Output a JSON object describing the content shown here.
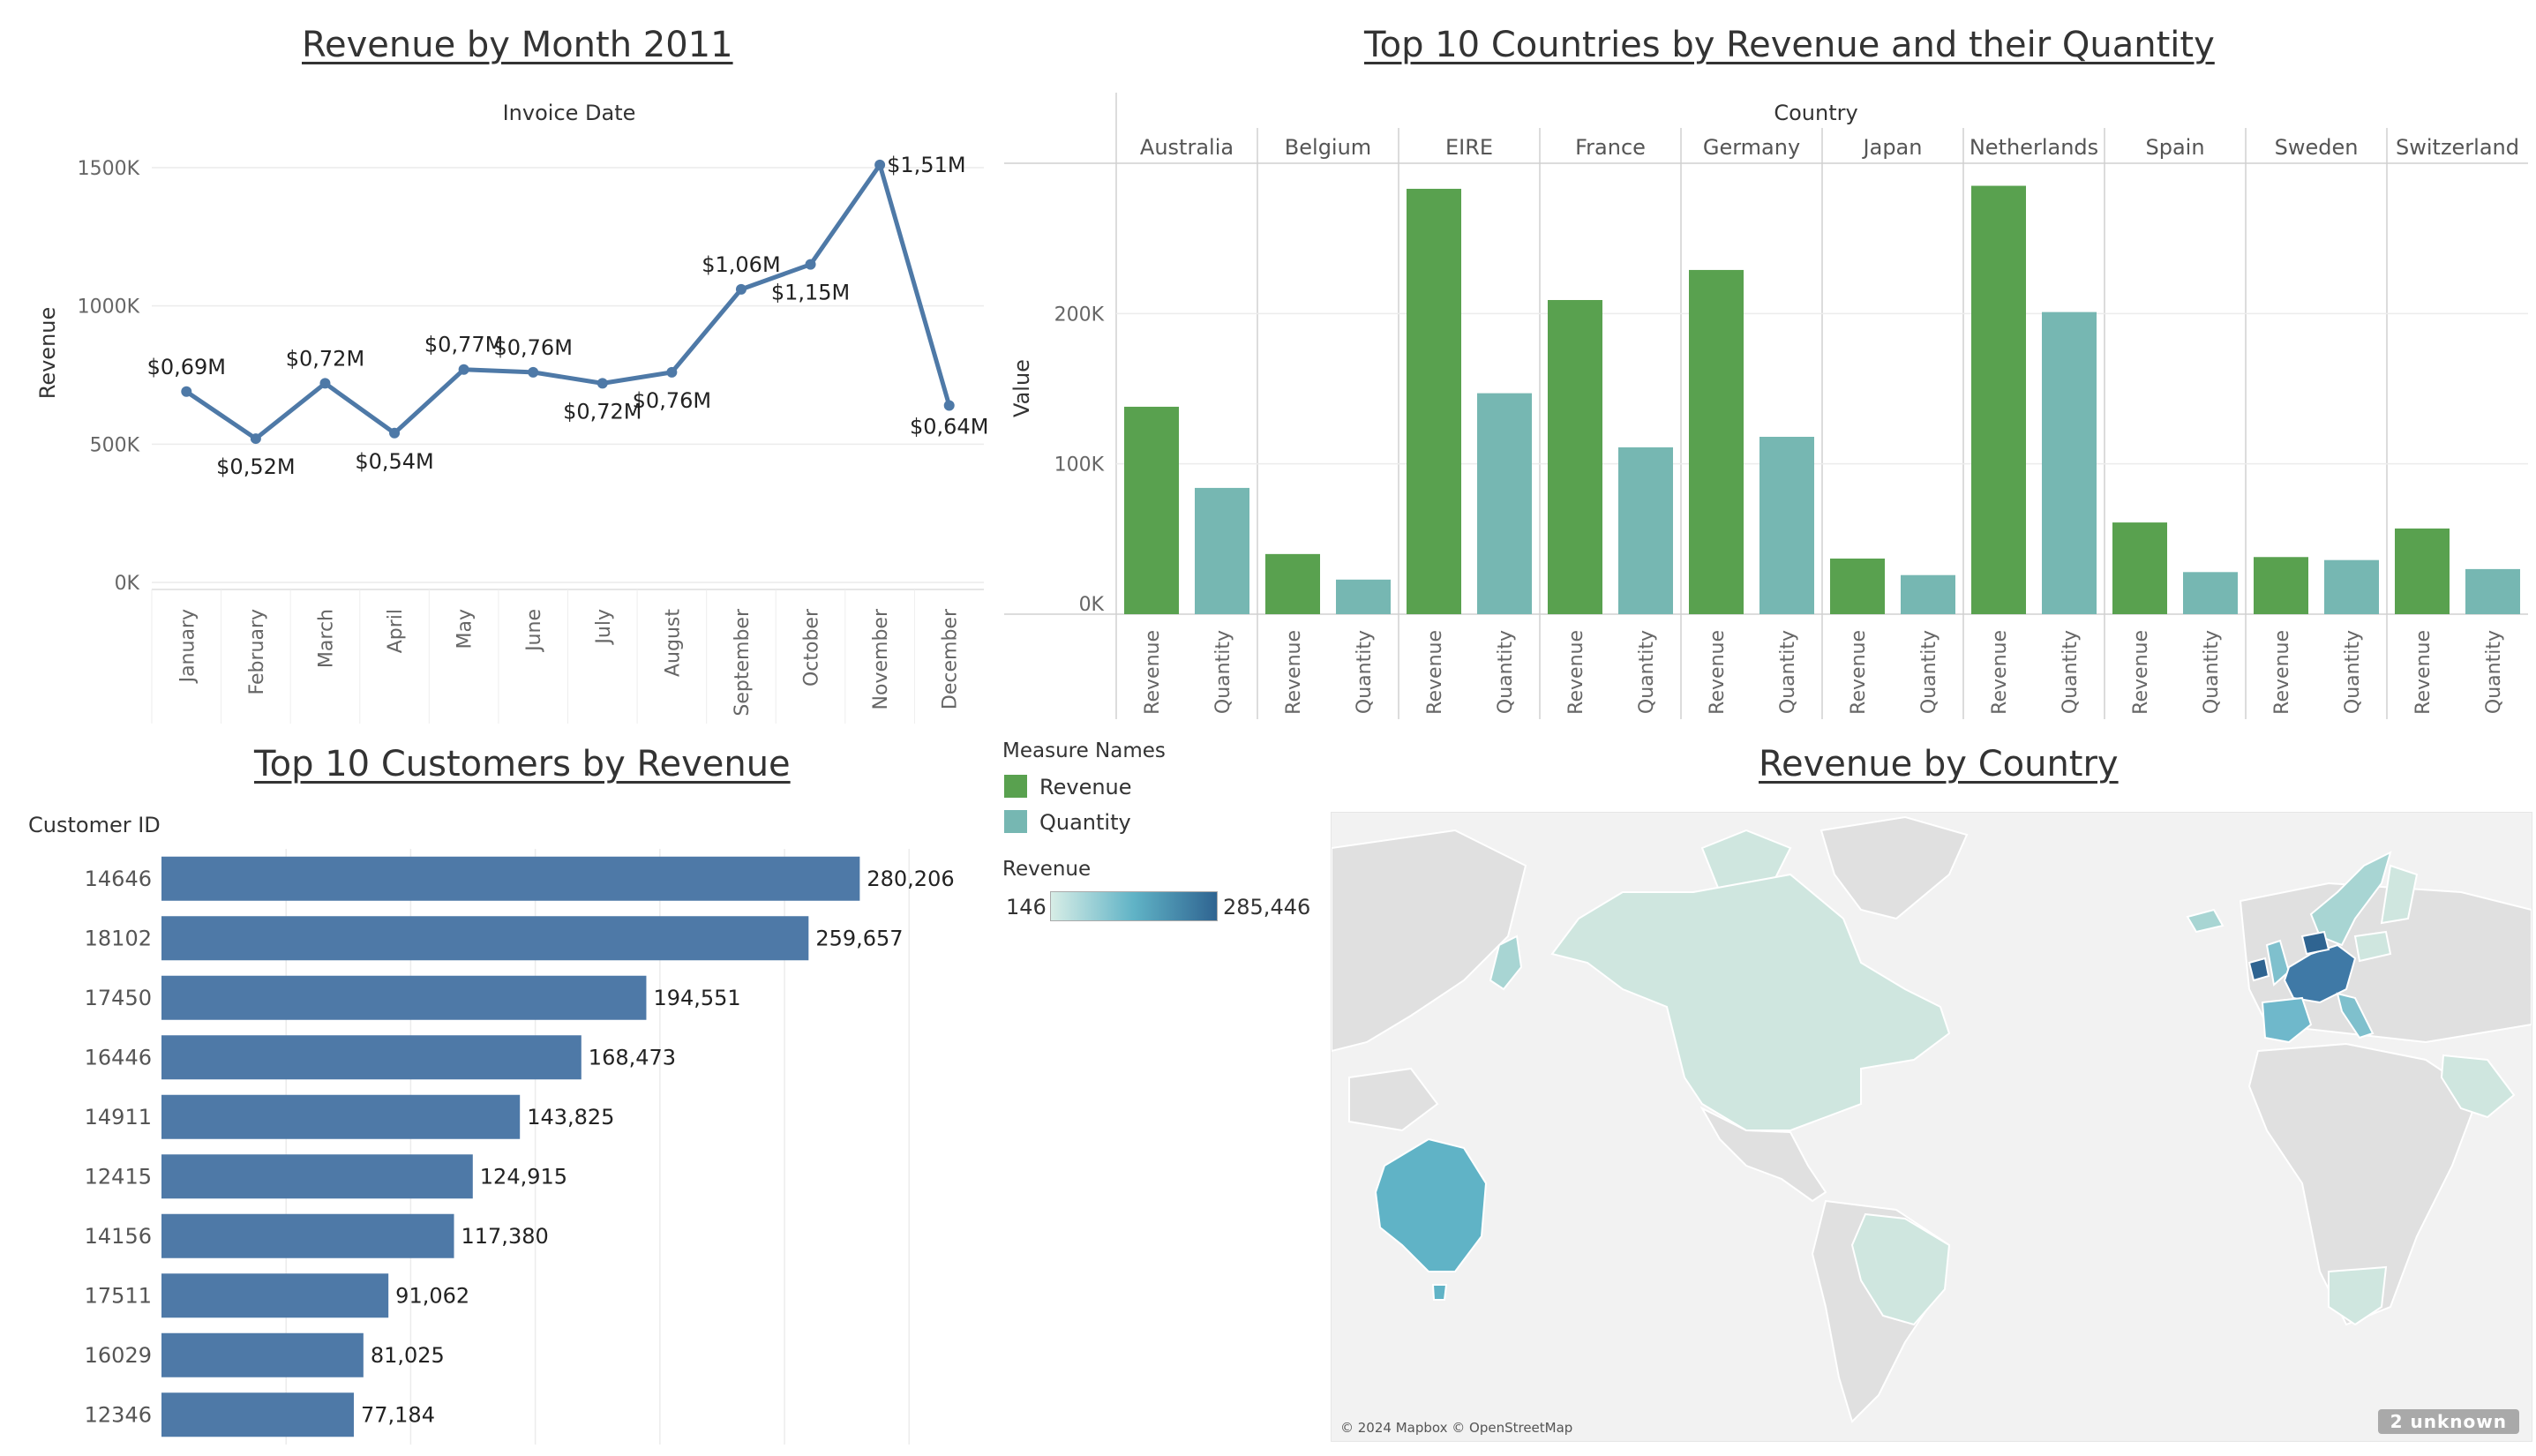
{
  "titles": {
    "line": "Revenue by Month 2011",
    "bars": "Top 10 Countries by Revenue and their Quantity",
    "customers": "Top 10 Customers by Revenue",
    "map": "Revenue by Country"
  },
  "legend": {
    "measure_title": "Measure Names",
    "measures": [
      {
        "label": "Revenue",
        "color": "#59a14f"
      },
      {
        "label": "Quantity",
        "color": "#76b7b2"
      }
    ],
    "revenue_title": "Revenue",
    "min_label": "146",
    "max_label": "285,446"
  },
  "map": {
    "attribution": "© 2024 Mapbox © OpenStreetMap",
    "unknown_label": "2 unknown"
  },
  "chart_data": [
    {
      "type": "line",
      "title": "Revenue by Month 2011",
      "xlabel": "Invoice Date",
      "ylabel": "Revenue",
      "ylim": [
        0,
        1500000
      ],
      "yticks": [
        0,
        500000,
        1000000,
        1500000
      ],
      "ytick_labels": [
        "0K",
        "500K",
        "1000K",
        "1500K"
      ],
      "categories": [
        "January",
        "February",
        "March",
        "April",
        "May",
        "June",
        "July",
        "August",
        "September",
        "October",
        "November",
        "December"
      ],
      "values": [
        690000,
        520000,
        720000,
        540000,
        770000,
        760000,
        720000,
        760000,
        1060000,
        1150000,
        1510000,
        640000
      ],
      "labels": [
        "$0,69M",
        "$0,52M",
        "$0,72M",
        "$0,54M",
        "$0,77M",
        "$0,76M",
        "$0,72M",
        "$0,76M",
        "$1,06M",
        "$1,15M",
        "$1,51M",
        "$0,64M"
      ],
      "color": "#4e79a7"
    },
    {
      "type": "bar",
      "title": "Top 10 Countries by Revenue and their Quantity",
      "xlabel": "Country",
      "ylabel": "Value",
      "ylim": [
        0,
        300000
      ],
      "yticks": [
        0,
        100000,
        200000
      ],
      "ytick_labels": [
        "0K",
        "100K",
        "200K"
      ],
      "categories": [
        "Australia",
        "Belgium",
        "EIRE",
        "France",
        "Germany",
        "Japan",
        "Netherlands",
        "Spain",
        "Sweden",
        "Switzerland"
      ],
      "series": [
        {
          "name": "Revenue",
          "color": "#59a14f",
          "values": [
            138000,
            40000,
            283000,
            209000,
            229000,
            37000,
            285000,
            61000,
            38000,
            57000
          ]
        },
        {
          "name": "Quantity",
          "color": "#76b7b2",
          "values": [
            84000,
            23000,
            147000,
            111000,
            118000,
            26000,
            201000,
            28000,
            36000,
            30000
          ]
        }
      ]
    },
    {
      "type": "bar",
      "orientation": "horizontal",
      "title": "Top 10 Customers by Revenue",
      "ylabel": "Customer ID",
      "xlim": [
        0,
        330000
      ],
      "categories": [
        "14646",
        "18102",
        "17450",
        "16446",
        "14911",
        "12415",
        "14156",
        "17511",
        "16029",
        "12346"
      ],
      "values": [
        280206,
        259657,
        194551,
        168473,
        143825,
        124915,
        117380,
        91062,
        81025,
        77184
      ],
      "labels": [
        "280,206",
        "259,657",
        "194,551",
        "168,473",
        "143,825",
        "124,915",
        "117,380",
        "91,062",
        "81,025",
        "77,184"
      ],
      "color": "#4e79a7"
    }
  ]
}
